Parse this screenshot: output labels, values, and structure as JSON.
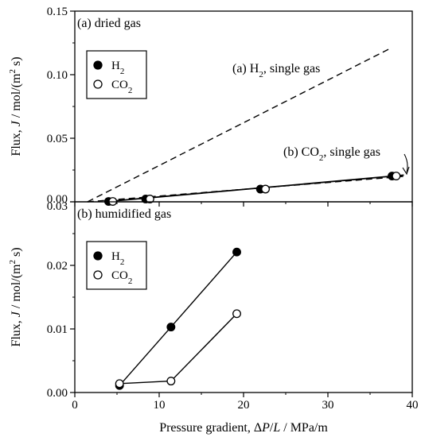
{
  "chart_data": [
    {
      "type": "line",
      "panel_label": "(a) dried gas",
      "xlabel": "Pressure gradient, ΔP/L / MPa/m",
      "ylabel": "Flux, J / mol/(m² s)",
      "xlim": [
        0,
        40
      ],
      "ylim": [
        0,
        0.15
      ],
      "xticks": [
        0,
        10,
        20,
        30,
        40
      ],
      "yticks": [
        "0.00",
        "0.05",
        "0.10",
        "0.15"
      ],
      "legend": [
        {
          "name": "H2",
          "marker": "filled-circle"
        },
        {
          "name": "CO2",
          "marker": "open-circle"
        }
      ],
      "legend_position": "upper-left",
      "series": [
        {
          "name": "H2",
          "marker": "filled",
          "x": [
            4.0,
            8.4,
            22.0,
            37.6
          ],
          "y": [
            0.0003,
            0.0022,
            0.01,
            0.0203
          ]
        },
        {
          "name": "CO2",
          "marker": "open",
          "x": [
            4.5,
            8.9,
            22.6,
            38.1
          ],
          "y": [
            0.0003,
            0.0022,
            0.01,
            0.0203
          ]
        }
      ],
      "fit_line": {
        "x": [
          4.0,
          39.0
        ],
        "y": [
          0.0003,
          0.021
        ]
      },
      "reference_lines": [
        {
          "label_main": "(a) H",
          "label_sub": "2",
          "label_rest": ", single gas",
          "style": "dashed",
          "x": [
            1.5,
            37.5
          ],
          "y": [
            0.0,
            0.121
          ]
        },
        {
          "label_main": "(b) CO",
          "label_sub": "2",
          "label_rest": ", single gas",
          "style": "dashed",
          "x": [
            1.5,
            39.0
          ],
          "y": [
            0.0,
            0.02
          ]
        }
      ]
    },
    {
      "type": "line",
      "panel_label": "(b) humidified gas",
      "xlabel": "Pressure gradient, ΔP/L / MPa/m",
      "ylabel": "Flux, J / mol/(m² s)",
      "xlim": [
        0,
        40
      ],
      "ylim": [
        0,
        0.03
      ],
      "xticks": [
        0,
        10,
        20,
        30,
        40
      ],
      "yticks": [
        "0.00",
        "0.01",
        "0.02",
        "0.03"
      ],
      "legend": [
        {
          "name": "H2",
          "marker": "filled-circle"
        },
        {
          "name": "CO2",
          "marker": "open-circle"
        }
      ],
      "legend_position": "upper-left",
      "series": [
        {
          "name": "H2",
          "marker": "filled",
          "x": [
            5.3,
            11.4,
            19.2
          ],
          "y": [
            0.0011,
            0.0103,
            0.0221
          ]
        },
        {
          "name": "CO2",
          "marker": "open",
          "x": [
            5.3,
            11.4,
            19.2
          ],
          "y": [
            0.0014,
            0.0018,
            0.0124
          ]
        }
      ]
    }
  ]
}
